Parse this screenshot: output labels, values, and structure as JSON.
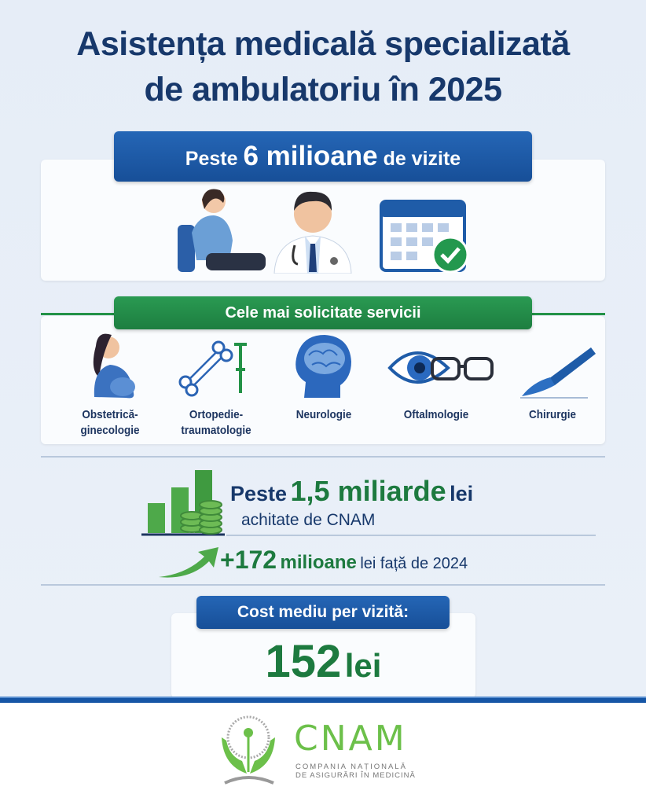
{
  "title": {
    "line1": "Asistența medicală specializată",
    "line2": "de ambulatoriu în 2025"
  },
  "visits": {
    "prefix": "Peste",
    "number": "6 milioane",
    "suffix": "de vizite"
  },
  "services": {
    "heading": "Cele mai solicitate servicii",
    "items": [
      {
        "label1": "Obstetrică-",
        "label2": "ginecologie",
        "icon": "pregnant-woman-icon"
      },
      {
        "label1": "Ortopedie-",
        "label2": "traumatologie",
        "icon": "bone-crutch-icon"
      },
      {
        "label1": "Neurologie",
        "label2": "",
        "icon": "brain-head-icon"
      },
      {
        "label1": "Oftalmologie",
        "label2": "",
        "icon": "eye-glasses-icon"
      },
      {
        "label1": "Chirurgie",
        "label2": "",
        "icon": "scalpel-icon"
      }
    ]
  },
  "funding": {
    "prefix": "Peste",
    "amount": "1,5 miliarde",
    "unit": "lei",
    "line2": "achitate de CNAM",
    "increase": "+172",
    "increase_unit": "milioane",
    "increase_suffix": "lei față de 2024"
  },
  "cost": {
    "label": "Cost mediu per vizită:",
    "value": "152",
    "unit": "lei"
  },
  "logo": {
    "name": "CNAM",
    "line1": "COMPANIA NAȚIONALĂ",
    "line2": "DE ASIGURĂRI ÎN MEDICINĂ"
  },
  "colors": {
    "navy": "#17386b",
    "blue": "#1c5aa6",
    "green": "#1d7a3f",
    "logo_green": "#6cc04a"
  }
}
